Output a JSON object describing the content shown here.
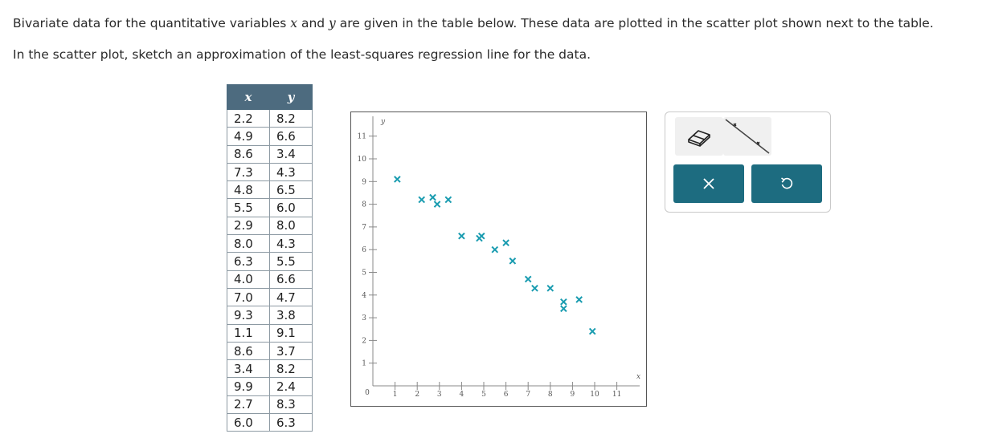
{
  "prompt": {
    "line1_a": "Bivariate data for the quantitative variables ",
    "var_x": "x",
    "line1_b": " and ",
    "var_y": "y",
    "line1_c": " are given in the table below. These data are plotted in the scatter plot shown next to the table.",
    "line2": "In the scatter plot, sketch an approximation of the least-squares regression line for the data."
  },
  "table": {
    "headers": [
      "x",
      "y"
    ],
    "rows": [
      [
        "2.2",
        "8.2"
      ],
      [
        "4.9",
        "6.6"
      ],
      [
        "8.6",
        "3.4"
      ],
      [
        "7.3",
        "4.3"
      ],
      [
        "4.8",
        "6.5"
      ],
      [
        "5.5",
        "6.0"
      ],
      [
        "2.9",
        "8.0"
      ],
      [
        "8.0",
        "4.3"
      ],
      [
        "6.3",
        "5.5"
      ],
      [
        "4.0",
        "6.6"
      ],
      [
        "7.0",
        "4.7"
      ],
      [
        "9.3",
        "3.8"
      ],
      [
        "1.1",
        "9.1"
      ],
      [
        "8.6",
        "3.7"
      ],
      [
        "3.4",
        "8.2"
      ],
      [
        "9.9",
        "2.4"
      ],
      [
        "2.7",
        "8.3"
      ],
      [
        "6.0",
        "6.3"
      ]
    ]
  },
  "chart_data": {
    "type": "scatter",
    "xlabel": "x",
    "ylabel": "y",
    "xlim": [
      0,
      12
    ],
    "ylim": [
      0,
      12
    ],
    "x_ticks": [
      "1",
      "2",
      "3",
      "4",
      "5",
      "6",
      "7",
      "8",
      "9",
      "10",
      "11"
    ],
    "y_ticks": [
      "1",
      "2",
      "3",
      "4",
      "5",
      "6",
      "7",
      "8",
      "9",
      "10",
      "11"
    ],
    "origin_label": "0",
    "grid": false,
    "marker": "x",
    "color": "#1a9cb0",
    "points": [
      {
        "x": 2.2,
        "y": 8.2
      },
      {
        "x": 4.9,
        "y": 6.6
      },
      {
        "x": 8.6,
        "y": 3.4
      },
      {
        "x": 7.3,
        "y": 4.3
      },
      {
        "x": 4.8,
        "y": 6.5
      },
      {
        "x": 5.5,
        "y": 6.0
      },
      {
        "x": 2.9,
        "y": 8.0
      },
      {
        "x": 8.0,
        "y": 4.3
      },
      {
        "x": 6.3,
        "y": 5.5
      },
      {
        "x": 4.0,
        "y": 6.6
      },
      {
        "x": 7.0,
        "y": 4.7
      },
      {
        "x": 9.3,
        "y": 3.8
      },
      {
        "x": 1.1,
        "y": 9.1
      },
      {
        "x": 8.6,
        "y": 3.7
      },
      {
        "x": 3.4,
        "y": 8.2
      },
      {
        "x": 9.9,
        "y": 2.4
      },
      {
        "x": 2.7,
        "y": 8.3
      },
      {
        "x": 6.0,
        "y": 6.3
      }
    ]
  },
  "toolbar": {
    "tools": [
      "eraser-icon",
      "line-tool-icon"
    ],
    "actions": [
      "close-icon",
      "undo-icon"
    ],
    "button_color": "#1d6c80"
  }
}
